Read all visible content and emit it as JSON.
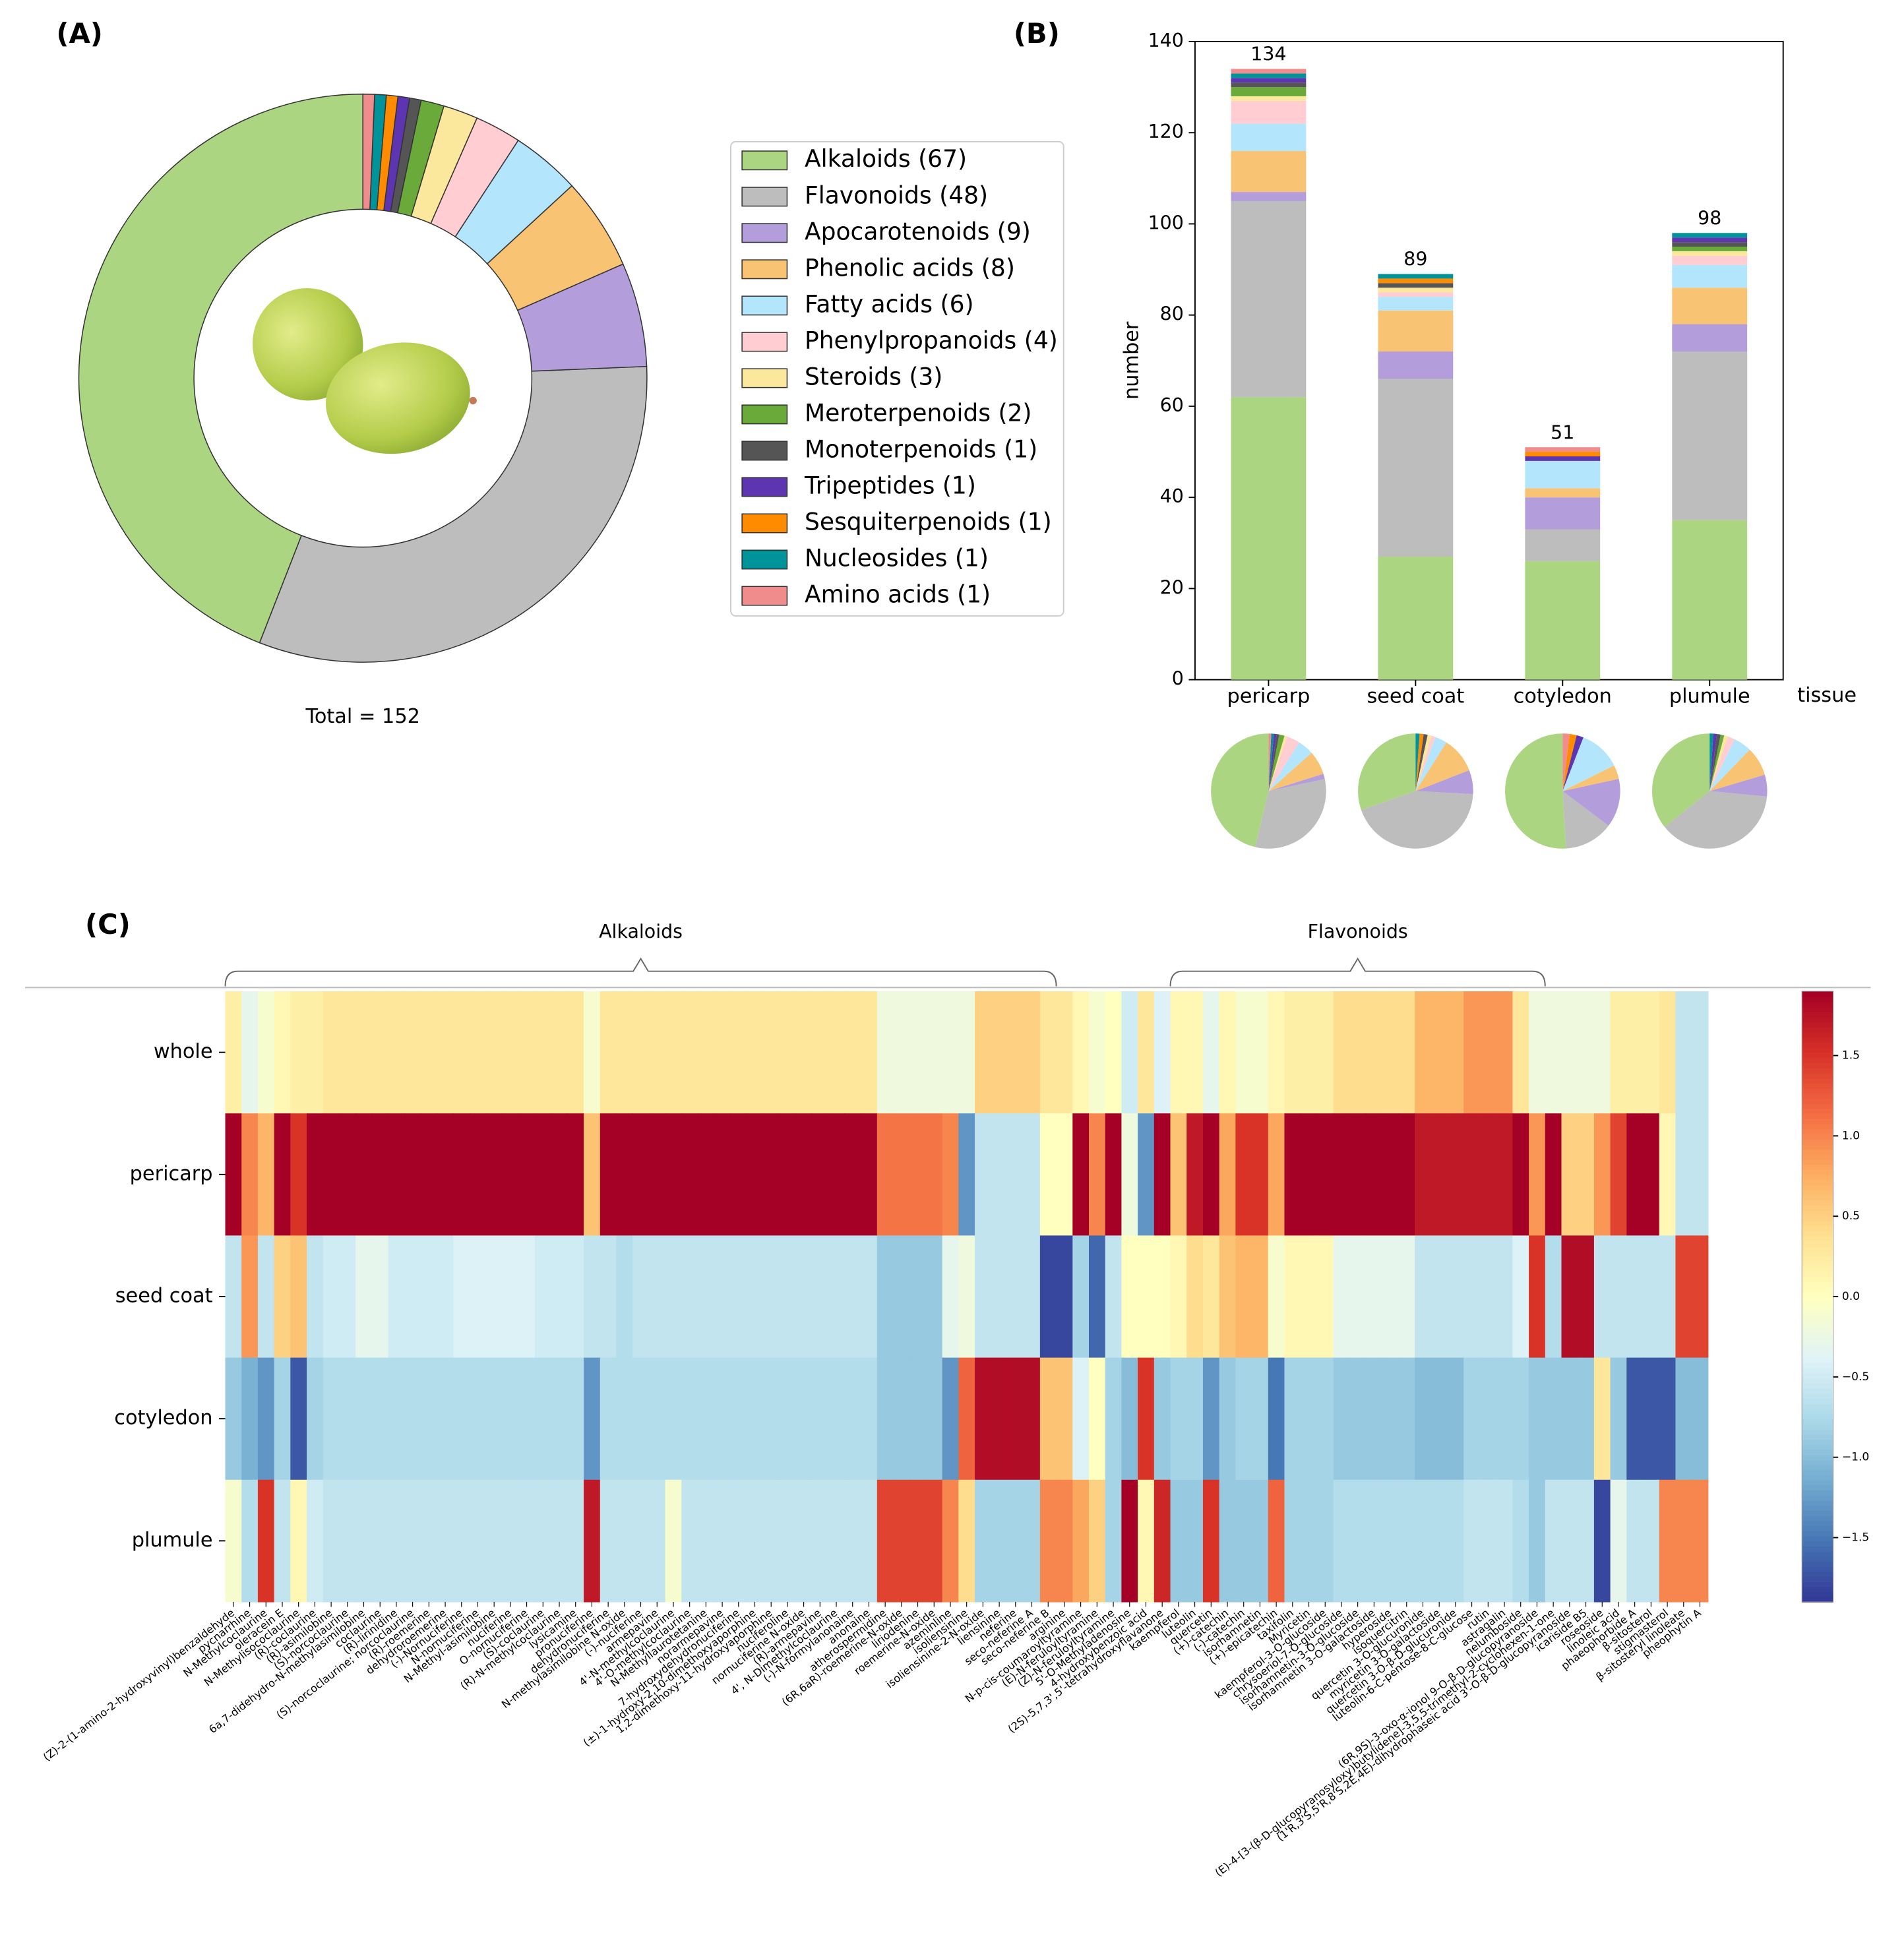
{
  "chart_data": [
    {
      "type": "donut",
      "panel": "(A)",
      "annotation": "Total = 152",
      "categories": [
        "Alkaloids (67)",
        "Flavonoids (48)",
        "Apocarotenoids (9)",
        "Phenolic acids (8)",
        "Fatty acids (6)",
        "Phenylpropanoids (4)",
        "Steroids (3)",
        "Meroterpenoids (2)",
        "Monoterpenoids (1)",
        "Tripeptides (1)",
        "Sesquiterpenoids (1)",
        "Nucleosides (1)",
        "Amino acids (1)"
      ],
      "values": [
        67,
        48,
        9,
        8,
        6,
        4,
        3,
        2,
        1,
        1,
        1,
        1,
        1
      ],
      "colors": [
        "#acd582",
        "#bdbdbd",
        "#b39ddb",
        "#f9c374",
        "#b3e5fc",
        "#ffcdd2",
        "#fbe89c",
        "#6aaa3a",
        "#555555",
        "#5e35b1",
        "#ff8c00",
        "#00939a",
        "#f08c8c"
      ]
    },
    {
      "type": "stacked_bar",
      "panel": "(B)",
      "y_label": "number",
      "x_label": "tissue",
      "categories": [
        "pericarp",
        "seed coat",
        "cotyledon",
        "plumule"
      ],
      "totals": [
        134,
        89,
        51,
        98
      ],
      "series": [
        {
          "color": "#acd582",
          "values": [
            62,
            27,
            26,
            35
          ]
        },
        {
          "color": "#bdbdbd",
          "values": [
            43,
            39,
            7,
            37
          ]
        },
        {
          "color": "#b39ddb",
          "values": [
            2,
            6,
            7,
            6
          ]
        },
        {
          "color": "#f9c374",
          "values": [
            9,
            9,
            2,
            8
          ]
        },
        {
          "color": "#b3e5fc",
          "values": [
            6,
            3,
            6,
            5
          ]
        },
        {
          "color": "#ffcdd2",
          "values": [
            5,
            1,
            0,
            2
          ]
        },
        {
          "color": "#fbe89c",
          "values": [
            1,
            1,
            0,
            1
          ]
        },
        {
          "color": "#6aaa3a",
          "values": [
            2,
            0,
            0,
            1
          ]
        },
        {
          "color": "#555555",
          "values": [
            1,
            1,
            0,
            1
          ]
        },
        {
          "color": "#5e35b1",
          "values": [
            1,
            0,
            1,
            1
          ]
        },
        {
          "color": "#ff8c00",
          "values": [
            0,
            1,
            1,
            0
          ]
        },
        {
          "color": "#00939a",
          "values": [
            1,
            1,
            0,
            1
          ]
        },
        {
          "color": "#f08c8c",
          "values": [
            1,
            0,
            1,
            0
          ]
        }
      ],
      "ylim": [
        0,
        140
      ],
      "yticks": [
        0,
        20,
        40,
        60,
        80,
        100,
        120,
        140
      ]
    },
    {
      "type": "heatmap",
      "panel": "(C)",
      "rows": [
        "whole",
        "pericarp",
        "seed coat",
        "cotyledon",
        "plumule"
      ],
      "groups": [
        {
          "name": "Alkaloids",
          "columns": [
            0,
            50
          ]
        },
        {
          "name": "Flavonoids",
          "columns": [
            58,
            80
          ]
        }
      ],
      "columns": [
        "(Z)-2-(1-amino-2-hydroxyvinyl)benzaldehyde",
        "pycnarrhine",
        "N-Methylcoclaurine",
        "oleracein E",
        "N-Methylisococlaurine",
        "(R)-coclaurine",
        "(R)-asimilobine",
        "(S)-norcoclaurine",
        "6a,7-didehydro-N-methylasimilobine",
        "coclaurine",
        "(R)-lirinidine",
        "(S)-norcoclaurine; norcoclaurine",
        "(R)-roemerine",
        "dehydroroemerine",
        "(-)-Nornuciferine",
        "N-nornuciferine",
        "N-Methyl-asimilobine",
        "nuciferine",
        "O-nornuciferine",
        "(S)-coclaurine",
        "(R)-N-methylcoclaurine",
        "lysicamine",
        "pronuciferine",
        "dehydronuciferine",
        "N-methylasimilobine N-oxide",
        "(-)-nuciferine",
        "armepavine",
        "4'-N-methylcoclaurine",
        "4'-O-methylcoclaurine",
        "N-Methyllaurotetanine",
        "norarmepavine",
        "7-hydroxydehydronuciferine",
        "(±)-1-hydroxy-2,10-dimethoxyaporphine",
        "1,2-dimethoxy-11-hydroxyaporphine",
        "nuciferoline",
        "nornuciferine N-oxide",
        "(R)-armepavine",
        "4', N-Dimethylcoclaurine",
        "(-)-N-formylanonaine",
        "anonaine",
        "atherospermidine",
        "(6R,6aR)-roemerine-N-oxide",
        "liriodenine",
        "roemerine-N-oxide",
        "azeminline",
        "isoliensinine",
        "isoliensinine-2-N-oxide",
        "liensinine",
        "neferine",
        "seco-neferine A",
        "seco-neferine B",
        "arginine",
        "N-p-cis-coumaroyltyramine",
        "(E)-N-feruloyltyramine",
        "(Z)-N-feruloyltyramine",
        "5'-O-Methyladenosine",
        "4-hydroxybenzoic acid",
        "(2S)-5,7,3',5'-tetrahydroxyflavanone",
        "kaempferol",
        "luteolin",
        "quercetin",
        "(+)-catechin",
        "(-)-catechin",
        "isorhamnetin",
        "(+)-epicatechin",
        "taxifolin",
        "Myricetin",
        "kaempferol-3-O-glucoside",
        "chrysoeriol-7-O-glucoside",
        "isorhamnetin-3-O-glucoside",
        "isorhamnetin 3-O-galactoside",
        "hyperoside",
        "isoquercitrin",
        "quercetin 3-O-glucuronide",
        "myricetin 3-O-galactoside",
        "quercetin 3-O-β-D-glucuronide",
        "luteolin-6-C-pentose-8-C-glucose",
        "rutin",
        "astragalin",
        "nelumboside",
        "(6R,9S)-3-oxo-α-ionol 9-O-β-D-glucopyranoside",
        "(E)-4-[3-(β-D-glucopyranosyloxy)butylidene]-3,5,5-trimethyl-2-cyclohexen-1-one",
        "(1'R,3'S,5'R,8'S,2E,4E)-dihydrophaseic acid 3'-O-β-D-glucopyranoside",
        "icariside B5",
        "roseoside",
        "linoleic acid",
        "phaeophorbide A",
        "β-sitosterol",
        "stigmasterol",
        "β-sitosteryl linoleate",
        "pheophytin A"
      ],
      "values": [
        [
          0.2,
          -0.3,
          -0.1,
          0.1,
          0.2,
          0.2,
          0.3,
          0.3,
          0.3,
          0.3,
          0.3,
          0.3,
          0.3,
          0.3,
          0.3,
          0.3,
          0.3,
          0.3,
          0.3,
          0.3,
          0.3,
          0.3,
          -0.1,
          0.3,
          0.3,
          0.3,
          0.3,
          0.3,
          0.3,
          0.3,
          0.3,
          0.3,
          0.3,
          0.3,
          0.3,
          0.3,
          0.3,
          0.3,
          0.3,
          0.3,
          -0.2,
          -0.2,
          -0.2,
          -0.2,
          -0.2,
          -0.2,
          0.5,
          0.5,
          0.5,
          0.5,
          0.3,
          0.3,
          0.1,
          -0.1,
          0.0,
          -0.5,
          0.3,
          -0.4,
          0.1,
          0.1,
          -0.3,
          0.1,
          -0.1,
          -0.1,
          0.1,
          0.2,
          0.2,
          0.2,
          0.4,
          0.4,
          0.4,
          0.4,
          0.4,
          0.7,
          0.7,
          0.7,
          0.9,
          0.9,
          0.9,
          0.3,
          -0.2,
          -0.2,
          -0.2,
          -0.2,
          -0.2,
          0.2,
          0.2,
          0.2,
          0.3,
          -0.6,
          -0.6
        ],
        [
          1.9,
          1.0,
          0.7,
          1.9,
          1.5,
          1.9,
          1.9,
          1.9,
          1.9,
          1.9,
          1.9,
          1.9,
          1.9,
          1.9,
          1.9,
          1.9,
          1.9,
          1.9,
          1.9,
          1.9,
          1.9,
          1.9,
          0.6,
          1.9,
          1.9,
          1.9,
          1.9,
          1.9,
          1.9,
          1.9,
          1.9,
          1.9,
          1.9,
          1.9,
          1.9,
          1.9,
          1.9,
          1.9,
          1.9,
          1.9,
          1.1,
          1.1,
          1.1,
          1.1,
          1.0,
          -1.3,
          -0.6,
          -0.6,
          -0.6,
          -0.6,
          0.0,
          0.0,
          1.9,
          1.0,
          1.9,
          -0.2,
          -1.3,
          1.9,
          0.6,
          1.7,
          1.9,
          0.8,
          1.5,
          1.5,
          0.8,
          1.9,
          1.9,
          1.9,
          1.9,
          1.9,
          1.9,
          1.9,
          1.9,
          1.7,
          1.7,
          1.7,
          1.7,
          1.7,
          1.7,
          1.9,
          0.9,
          1.9,
          0.5,
          0.5,
          0.9,
          1.4,
          1.9,
          1.9,
          0.1,
          -0.6,
          -0.6
        ],
        [
          -0.6,
          0.9,
          -0.6,
          0.5,
          0.6,
          -0.6,
          -0.5,
          -0.5,
          -0.3,
          -0.3,
          -0.5,
          -0.5,
          -0.5,
          -0.5,
          -0.4,
          -0.4,
          -0.4,
          -0.4,
          -0.4,
          -0.5,
          -0.5,
          -0.5,
          -0.6,
          -0.6,
          -0.7,
          -0.6,
          -0.6,
          -0.6,
          -0.6,
          -0.6,
          -0.6,
          -0.6,
          -0.6,
          -0.6,
          -0.6,
          -0.6,
          -0.6,
          -0.6,
          -0.6,
          -0.6,
          -0.9,
          -0.9,
          -0.9,
          -0.9,
          -0.3,
          -0.2,
          -0.6,
          -0.6,
          -0.6,
          -0.6,
          -1.8,
          -1.8,
          -0.8,
          -1.6,
          -0.6,
          0.0,
          0.0,
          0.0,
          0.1,
          0.4,
          0.3,
          0.6,
          0.7,
          0.7,
          -0.1,
          0.1,
          0.1,
          0.1,
          -0.3,
          -0.3,
          -0.3,
          -0.3,
          -0.3,
          -0.6,
          -0.6,
          -0.6,
          -0.6,
          -0.6,
          -0.6,
          -0.4,
          1.5,
          -0.7,
          1.8,
          1.8,
          -0.6,
          -0.6,
          -0.6,
          -0.6,
          -0.6,
          1.4,
          1.4
        ],
        [
          -0.9,
          -1.1,
          -1.3,
          -0.8,
          -1.7,
          -0.8,
          -0.7,
          -0.7,
          -0.7,
          -0.7,
          -0.7,
          -0.7,
          -0.7,
          -0.7,
          -0.7,
          -0.7,
          -0.7,
          -0.7,
          -0.7,
          -0.7,
          -0.7,
          -0.7,
          -1.3,
          -0.7,
          -0.7,
          -0.7,
          -0.7,
          -0.7,
          -0.7,
          -0.7,
          -0.7,
          -0.7,
          -0.7,
          -0.7,
          -0.7,
          -0.7,
          -0.7,
          -0.7,
          -0.7,
          -0.7,
          -0.9,
          -0.9,
          -0.9,
          -0.9,
          -1.3,
          1.2,
          1.8,
          1.8,
          1.8,
          1.8,
          0.6,
          0.6,
          -0.4,
          0.0,
          -0.8,
          -1.0,
          1.5,
          -0.9,
          -0.8,
          -0.8,
          -1.3,
          -0.9,
          -0.8,
          -0.8,
          -1.5,
          -0.8,
          -0.8,
          -0.8,
          -0.9,
          -0.9,
          -0.9,
          -0.9,
          -0.9,
          -1.0,
          -1.0,
          -1.0,
          -0.8,
          -0.8,
          -0.8,
          -0.8,
          -0.9,
          -0.9,
          -0.9,
          -0.9,
          0.3,
          -0.9,
          -1.7,
          -1.7,
          -1.7,
          -1.0,
          -1.0
        ],
        [
          -0.1,
          -0.7,
          1.5,
          -0.6,
          0.1,
          -0.5,
          -0.6,
          -0.6,
          -0.6,
          -0.6,
          -0.6,
          -0.6,
          -0.6,
          -0.6,
          -0.6,
          -0.6,
          -0.6,
          -0.6,
          -0.6,
          -0.6,
          -0.6,
          -0.6,
          1.7,
          -0.6,
          -0.6,
          -0.6,
          -0.6,
          -0.1,
          -0.6,
          -0.6,
          -0.6,
          -0.6,
          -0.6,
          -0.6,
          -0.6,
          -0.6,
          -0.6,
          -0.6,
          -0.6,
          -0.6,
          1.4,
          1.4,
          1.4,
          1.4,
          1.0,
          0.4,
          -0.8,
          -0.8,
          -0.8,
          -0.8,
          1.0,
          1.0,
          0.8,
          0.5,
          -0.8,
          1.9,
          0.1,
          1.6,
          -0.9,
          -0.9,
          1.5,
          -0.9,
          -0.9,
          -0.9,
          1.2,
          -0.8,
          -0.8,
          -0.8,
          -0.7,
          -0.7,
          -0.7,
          -0.7,
          -0.7,
          -0.7,
          -0.7,
          -0.7,
          -0.6,
          -0.6,
          -0.6,
          -0.7,
          -0.9,
          -0.6,
          -0.6,
          -0.6,
          -1.8,
          -0.3,
          -0.6,
          -0.6,
          1.0,
          1.0,
          1.0
        ]
      ],
      "zlim": [
        -1.9,
        1.9
      ],
      "colorscale": [
        "#313695",
        "#4575b4",
        "#74add1",
        "#abd9e9",
        "#e0f3f8",
        "#ffffbf",
        "#fee090",
        "#fdae61",
        "#f46d43",
        "#d73027",
        "#a50026"
      ],
      "zticks": [
        {
          "value": -1.5,
          "label": "−1.5"
        },
        {
          "value": -1,
          "label": "−1.0"
        },
        {
          "value": -0.5,
          "label": "−0.5"
        },
        {
          "value": 0,
          "label": "0.0"
        },
        0.5,
        {
          "value": 1,
          "label": "1.0"
        },
        1.5
      ]
    }
  ]
}
